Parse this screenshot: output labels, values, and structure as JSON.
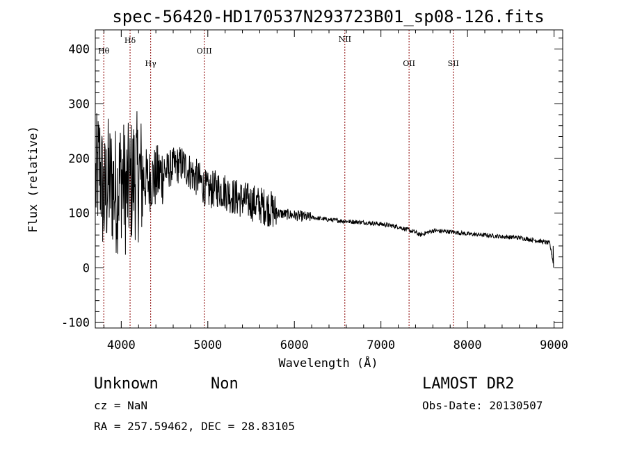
{
  "chart_data": {
    "type": "line",
    "title": "spec-56420-HD170537N293723B01_sp08-126.fits",
    "xlabel": "Wavelength (Å)",
    "ylabel": "Flux (relative)",
    "xlim": [
      3700,
      9100
    ],
    "ylim": [
      -110,
      435
    ],
    "x_ticks": [
      4000,
      5000,
      6000,
      7000,
      8000,
      9000
    ],
    "y_ticks": [
      -100,
      0,
      100,
      200,
      300,
      400
    ],
    "grid": false,
    "line_color": "#000000",
    "marker_color": "#8b0000",
    "emission_lines": [
      {
        "label": "Hθ",
        "wavelength": 3798
      },
      {
        "label": "Hδ",
        "wavelength": 4102
      },
      {
        "label": "Hγ",
        "wavelength": 4340
      },
      {
        "label": "OIII",
        "wavelength": 4959
      },
      {
        "label": "NII",
        "wavelength": 6583
      },
      {
        "label": "OII",
        "wavelength": 7325
      },
      {
        "label": "SII",
        "wavelength": 7836
      }
    ],
    "series": [
      {
        "x": [
          3700,
          3750,
          3800,
          3850,
          3900,
          3950,
          4000,
          4050,
          4100,
          4150,
          4200,
          4300,
          4400,
          4500,
          4600,
          4700,
          4800,
          4900,
          5000,
          5100,
          5200,
          5300,
          5400,
          5500,
          5600,
          5700,
          5800,
          5900,
          6000,
          6200,
          6400,
          6600,
          6800,
          7000,
          7200,
          7400,
          7450,
          7600,
          7800,
          8000,
          8200,
          8400,
          8600,
          8800,
          8950,
          9000
        ],
        "y": [
          150,
          190,
          120,
          160,
          150,
          140,
          170,
          140,
          150,
          170,
          165,
          160,
          165,
          175,
          185,
          190,
          175,
          160,
          140,
          145,
          140,
          130,
          125,
          120,
          115,
          110,
          100,
          98,
          96,
          92,
          88,
          85,
          83,
          80,
          75,
          65,
          60,
          68,
          66,
          62,
          60,
          57,
          55,
          50,
          45,
          0
        ]
      }
    ]
  },
  "footer": {
    "object_name": "Unknown",
    "object_type": "Non",
    "survey": "LAMOST DR2",
    "cz": "cz = NaN",
    "obs_date": "Obs-Date: 20130507",
    "coords": "RA = 257.59462, DEC =  28.83105"
  }
}
